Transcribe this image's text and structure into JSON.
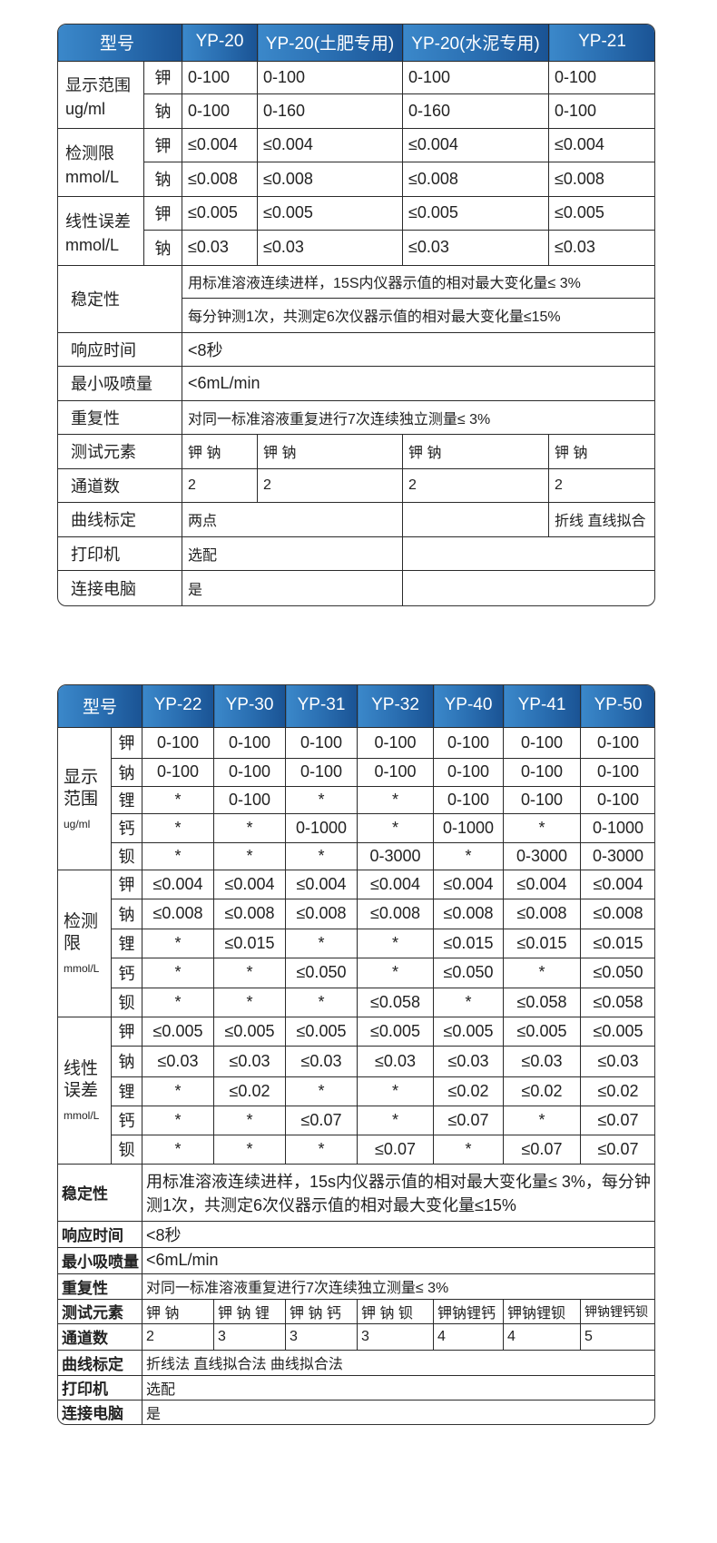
{
  "table1": {
    "header_label": "型号",
    "models": [
      "YP-20",
      "YP-20(土肥专用)",
      "YP-20(水泥专用)",
      "YP-21"
    ],
    "groups": [
      {
        "label": "显示范围",
        "unit": "ug/ml",
        "rows": [
          {
            "element": "钾",
            "values": [
              "0-100",
              "0-100",
              "0-100",
              "0-100"
            ]
          },
          {
            "element": "钠",
            "values": [
              "0-100",
              "0-160",
              "0-160",
              "0-100"
            ]
          }
        ]
      },
      {
        "label": "检测限",
        "unit": "mmol/L",
        "rows": [
          {
            "element": "钾",
            "values": [
              "≤0.004",
              "≤0.004",
              "≤0.004",
              "≤0.004"
            ]
          },
          {
            "element": "钠",
            "values": [
              "≤0.008",
              "≤0.008",
              "≤0.008",
              "≤0.008"
            ]
          }
        ]
      },
      {
        "label": "线性误差",
        "unit": "mmol/L",
        "rows": [
          {
            "element": "钾",
            "values": [
              "≤0.005",
              "≤0.005",
              "≤0.005",
              "≤0.005"
            ]
          },
          {
            "element": "钠",
            "values": [
              "≤0.03",
              "≤0.03",
              "≤0.03",
              "≤0.03"
            ]
          }
        ]
      }
    ],
    "stability": {
      "label": "稳定性",
      "lines": [
        "用标准溶液连续进样，15S内仪器示值的相对最大变化量≤ 3%",
        "每分钟测1次，共测定6次仪器示值的相对最大变化量≤15%"
      ]
    },
    "response_time": {
      "label": "响应时间",
      "value": "<8秒"
    },
    "min_flow": {
      "label": "最小吸喷量",
      "value": "<6mL/min"
    },
    "repeatability": {
      "label": "重复性",
      "value": "对同一标准溶液重复进行7次连续独立测量≤ 3%"
    },
    "elements": {
      "label": "测试元素",
      "values": [
        "钾 钠",
        "钾 钠",
        "钾 钠",
        "钾 钠"
      ]
    },
    "channels": {
      "label": "通道数",
      "values": [
        "2",
        "2",
        "2",
        "2"
      ]
    },
    "curve": {
      "label": "曲线标定",
      "values": [
        "两点",
        "",
        "折线 直线拟合"
      ]
    },
    "printer": {
      "label": "打印机",
      "values": [
        "选配",
        ""
      ]
    },
    "pc": {
      "label": "连接电脑",
      "values": [
        "是",
        ""
      ]
    }
  },
  "table2": {
    "header_label": "型号",
    "models": [
      "YP-22",
      "YP-30",
      "YP-31",
      "YP-32",
      "YP-40",
      "YP-41",
      "YP-50"
    ],
    "groups": [
      {
        "label": "显示范围",
        "unit": "ug/ml",
        "rows": [
          {
            "element": "钾",
            "values": [
              "0-100",
              "0-100",
              "0-100",
              "0-100",
              "0-100",
              "0-100",
              "0-100"
            ]
          },
          {
            "element": "钠",
            "values": [
              "0-100",
              "0-100",
              "0-100",
              "0-100",
              "0-100",
              "0-100",
              "0-100"
            ]
          },
          {
            "element": "锂",
            "values": [
              "*",
              "0-100",
              "*",
              "*",
              "0-100",
              "0-100",
              "0-100"
            ]
          },
          {
            "element": "钙",
            "values": [
              "*",
              "*",
              "0-1000",
              "*",
              "0-1000",
              "*",
              "0-1000"
            ]
          },
          {
            "element": "钡",
            "values": [
              "*",
              "*",
              "*",
              "0-3000",
              "*",
              "0-3000",
              "0-3000"
            ]
          }
        ]
      },
      {
        "label": "检测限",
        "unit": "mmol/L",
        "rows": [
          {
            "element": "钾",
            "values": [
              "≤0.004",
              "≤0.004",
              "≤0.004",
              "≤0.004",
              "≤0.004",
              "≤0.004",
              "≤0.004"
            ]
          },
          {
            "element": "钠",
            "values": [
              "≤0.008",
              "≤0.008",
              "≤0.008",
              "≤0.008",
              "≤0.008",
              "≤0.008",
              "≤0.008"
            ]
          },
          {
            "element": "锂",
            "values": [
              "*",
              "≤0.015",
              "*",
              "*",
              "≤0.015",
              "≤0.015",
              "≤0.015"
            ]
          },
          {
            "element": "钙",
            "values": [
              "*",
              "*",
              "≤0.050",
              "*",
              "≤0.050",
              "*",
              "≤0.050"
            ]
          },
          {
            "element": "钡",
            "values": [
              "*",
              "*",
              "*",
              "≤0.058",
              "*",
              "≤0.058",
              "≤0.058"
            ]
          }
        ]
      },
      {
        "label": "线性误差",
        "unit": "mmol/L",
        "rows": [
          {
            "element": "钾",
            "values": [
              "≤0.005",
              "≤0.005",
              "≤0.005",
              "≤0.005",
              "≤0.005",
              "≤0.005",
              "≤0.005"
            ]
          },
          {
            "element": "钠",
            "values": [
              "≤0.03",
              "≤0.03",
              "≤0.03",
              "≤0.03",
              "≤0.03",
              "≤0.03",
              "≤0.03"
            ]
          },
          {
            "element": "锂",
            "values": [
              "*",
              "≤0.02",
              "*",
              "*",
              "≤0.02",
              "≤0.02",
              "≤0.02"
            ]
          },
          {
            "element": "钙",
            "values": [
              "*",
              "*",
              "≤0.07",
              "*",
              "≤0.07",
              "*",
              "≤0.07"
            ]
          },
          {
            "element": "钡",
            "values": [
              "*",
              "*",
              "*",
              "≤0.07",
              "*",
              "≤0.07",
              "≤0.07"
            ]
          }
        ]
      }
    ],
    "stability": {
      "label": "稳定性",
      "value": "用标准溶液连续进样，15s内仪器示值的相对最大变化量≤ 3%，每分钟测1次，共测定6次仪器示值的相对最大变化量≤15%"
    },
    "response_time": {
      "label": "响应时间",
      "value": "<8秒"
    },
    "min_flow": {
      "label": "最小吸喷量",
      "value": "<6mL/min"
    },
    "repeatability": {
      "label": "重复性",
      "value": "对同一标准溶液重复进行7次连续独立测量≤ 3%"
    },
    "elements": {
      "label": "测试元素",
      "values": [
        "钾 钠",
        "钾 钠 锂",
        "钾 钠 钙",
        "钾 钠 钡",
        "钾钠锂钙",
        "钾钠锂钡",
        "钾钠锂钙钡"
      ]
    },
    "channels": {
      "label": "通道数",
      "values": [
        "2",
        "3",
        "3",
        "3",
        "4",
        "4",
        "5"
      ]
    },
    "curve": {
      "label": "曲线标定",
      "value": "折线法  直线拟合法  曲线拟合法"
    },
    "printer": {
      "label": "打印机",
      "value": "选配"
    },
    "pc": {
      "label": "连接电脑",
      "value": "是"
    }
  }
}
